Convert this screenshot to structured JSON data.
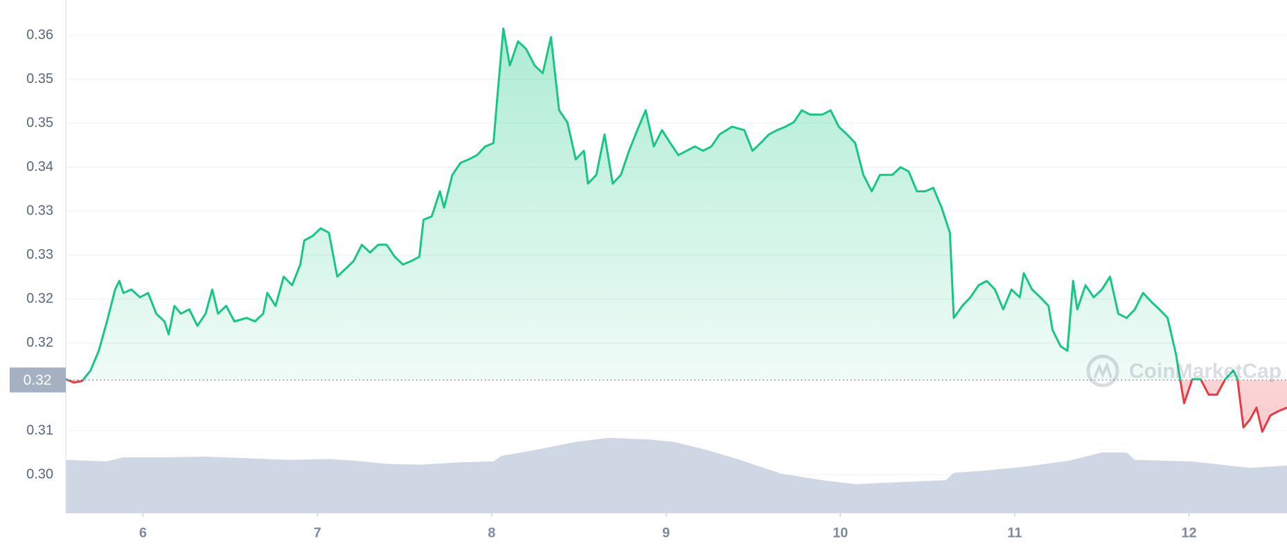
{
  "chart_data": {
    "type": "line",
    "watermark": "CoinMarketCap",
    "xlim": [
      5.557,
      12.562
    ],
    "xticks": [
      6,
      7,
      8,
      9,
      10,
      11,
      12
    ],
    "ylim": [
      0.2999,
      0.3594
    ],
    "yticks": [
      {
        "value": 0.3043,
        "label": "0.30"
      },
      {
        "value": 0.3094,
        "label": "0.31"
      },
      {
        "value": 0.3196,
        "label": "0.32"
      },
      {
        "value": 0.3247,
        "label": "0.32"
      },
      {
        "value": 0.3298,
        "label": "0.33"
      },
      {
        "value": 0.3349,
        "label": "0.33"
      },
      {
        "value": 0.34,
        "label": "0.34"
      },
      {
        "value": 0.3451,
        "label": "0.35"
      },
      {
        "value": 0.3502,
        "label": "0.35"
      },
      {
        "value": 0.3553,
        "label": "0.36"
      }
    ],
    "grid": true,
    "reference": {
      "value": 0.3153,
      "label": "0.32"
    },
    "series": [
      {
        "color": "#16c784",
        "negative_color": "#ea3943",
        "x": [
          5.557,
          5.604,
          5.651,
          5.699,
          5.746,
          5.793,
          5.84,
          5.864,
          5.887,
          5.934,
          5.982,
          6.029,
          6.076,
          6.123,
          6.147,
          6.18,
          6.217,
          6.265,
          6.312,
          6.359,
          6.397,
          6.43,
          6.477,
          6.524,
          6.595,
          6.642,
          6.689,
          6.713,
          6.76,
          6.807,
          6.855,
          6.902,
          6.925,
          6.972,
          7.019,
          7.066,
          7.114,
          7.161,
          7.208,
          7.255,
          7.302,
          7.349,
          7.397,
          7.444,
          7.491,
          7.538,
          7.585,
          7.609,
          7.656,
          7.703,
          7.727,
          7.774,
          7.821,
          7.868,
          7.916,
          7.963,
          8.01,
          8.034,
          8.067,
          8.104,
          8.151,
          8.198,
          8.246,
          8.293,
          8.34,
          8.387,
          8.434,
          8.482,
          8.529,
          8.552,
          8.6,
          8.647,
          8.694,
          8.741,
          8.788,
          8.835,
          8.883,
          8.93,
          8.977,
          9.024,
          9.071,
          9.118,
          9.166,
          9.213,
          9.26,
          9.307,
          9.378,
          9.449,
          9.496,
          9.543,
          9.59,
          9.637,
          9.685,
          9.732,
          9.779,
          9.826,
          9.897,
          9.944,
          9.991,
          10.038,
          10.085,
          10.132,
          10.18,
          10.227,
          10.298,
          10.345,
          10.392,
          10.439,
          10.486,
          10.533,
          10.581,
          10.628,
          10.651,
          10.699,
          10.746,
          10.793,
          10.84,
          10.887,
          10.934,
          10.982,
          11.029,
          11.052,
          11.1,
          11.147,
          11.194,
          11.217,
          11.264,
          11.302,
          11.335,
          11.359,
          11.406,
          11.453,
          11.5,
          11.547,
          11.594,
          11.642,
          11.689,
          11.736,
          11.783,
          11.83,
          11.877,
          11.925,
          11.972,
          12.019,
          12.066,
          12.113,
          12.16,
          12.208,
          12.255,
          12.278,
          12.312,
          12.349,
          12.387,
          12.42,
          12.467,
          12.514,
          12.562
        ],
        "values": [
          0.3154,
          0.315,
          0.3152,
          0.3164,
          0.3187,
          0.3221,
          0.3258,
          0.3268,
          0.3254,
          0.3258,
          0.3249,
          0.3254,
          0.323,
          0.3221,
          0.3206,
          0.3239,
          0.323,
          0.3235,
          0.3216,
          0.323,
          0.3258,
          0.323,
          0.3239,
          0.3221,
          0.3225,
          0.3221,
          0.323,
          0.3254,
          0.3239,
          0.3273,
          0.3263,
          0.3287,
          0.3315,
          0.332,
          0.3329,
          0.3324,
          0.3273,
          0.3282,
          0.3291,
          0.331,
          0.3301,
          0.331,
          0.331,
          0.3296,
          0.3287,
          0.3291,
          0.3296,
          0.3339,
          0.3343,
          0.3372,
          0.3353,
          0.3391,
          0.3405,
          0.3409,
          0.3414,
          0.3424,
          0.3428,
          0.3485,
          0.3561,
          0.3518,
          0.3546,
          0.3537,
          0.3518,
          0.3509,
          0.3551,
          0.3466,
          0.3452,
          0.3409,
          0.3419,
          0.3381,
          0.3391,
          0.3438,
          0.3381,
          0.3391,
          0.3419,
          0.3443,
          0.3466,
          0.3424,
          0.3443,
          0.3428,
          0.3414,
          0.3419,
          0.3424,
          0.3419,
          0.3424,
          0.3438,
          0.3447,
          0.3443,
          0.3419,
          0.3428,
          0.3438,
          0.3443,
          0.3447,
          0.3452,
          0.3466,
          0.3461,
          0.3461,
          0.3466,
          0.3447,
          0.3438,
          0.3428,
          0.3391,
          0.3372,
          0.3391,
          0.3391,
          0.34,
          0.3395,
          0.3372,
          0.3372,
          0.3376,
          0.3353,
          0.3324,
          0.3225,
          0.3239,
          0.3249,
          0.3263,
          0.3268,
          0.3258,
          0.3235,
          0.3258,
          0.3249,
          0.3277,
          0.3258,
          0.3249,
          0.3239,
          0.3211,
          0.3192,
          0.3187,
          0.3268,
          0.3235,
          0.3263,
          0.3249,
          0.3258,
          0.3273,
          0.323,
          0.3225,
          0.3235,
          0.3254,
          0.3244,
          0.3235,
          0.3225,
          0.3183,
          0.3126,
          0.3154,
          0.3154,
          0.3136,
          0.3136,
          0.3154,
          0.3164,
          0.3154,
          0.3098,
          0.3107,
          0.3121,
          0.3093,
          0.3112,
          0.3117,
          0.3121
        ]
      }
    ],
    "volume": {
      "color": "#cfd6e4",
      "x": [
        5.557,
        5.793,
        5.887,
        6.123,
        6.359,
        6.595,
        6.831,
        7.066,
        7.208,
        7.397,
        7.585,
        7.821,
        8.01,
        8.057,
        8.246,
        8.482,
        8.67,
        8.906,
        9.048,
        9.236,
        9.425,
        9.661,
        9.897,
        10.085,
        10.274,
        10.604,
        10.651,
        10.84,
        11.076,
        11.312,
        11.5,
        11.642,
        11.689,
        12.019,
        12.349,
        12.562
      ],
      "values": [
        65,
        63,
        68,
        68,
        69,
        67,
        65,
        66,
        64,
        60,
        59,
        62,
        63,
        70,
        77,
        87,
        92,
        90,
        87,
        77,
        65,
        48,
        40,
        35,
        37,
        40,
        49,
        52,
        57,
        64,
        74,
        74,
        65,
        63,
        55,
        58
      ]
    }
  }
}
